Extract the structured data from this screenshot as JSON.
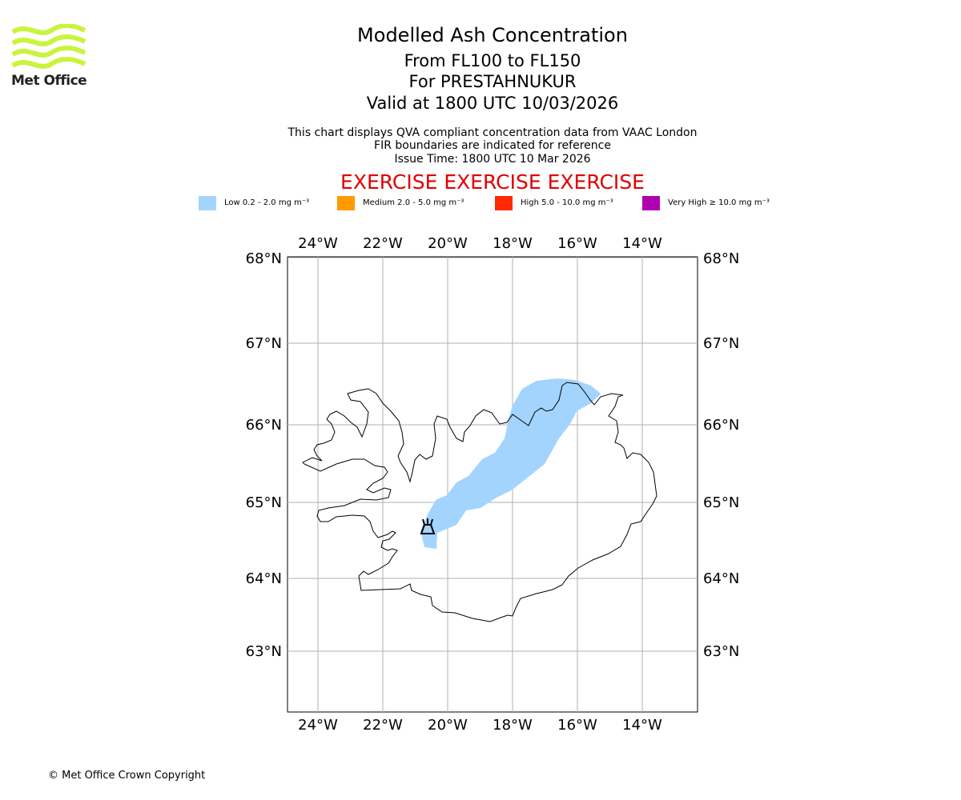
{
  "header": {
    "title": "Modelled Ash Concentration",
    "flight_levels": "From FL100 to FL150",
    "location": "For PRESTAHNUKUR",
    "valid": "Valid at 1800 UTC 10/03/2026",
    "note_line1": "This chart displays QVA compliant concentration data from VAAC London",
    "note_line2": "FIR boundaries are indicated for reference",
    "issue_time": "Issue Time: 1800 UTC 10 Mar 2026",
    "exercise_banner": "EXERCISE EXERCISE EXERCISE"
  },
  "logo": {
    "text": "Met Office",
    "accent_color": "#c8f53c"
  },
  "legend": [
    {
      "label": "Low 0.2 - 2.0 mg m⁻³",
      "color": "#a3d4fe"
    },
    {
      "label": "Medium 2.0 - 5.0 mg m⁻³",
      "color": "#ff9a00"
    },
    {
      "label": "High 5.0 - 10.0 mg m⁻³",
      "color": "#ff2a00"
    },
    {
      "label": "Very High ≥ 10.0 mg m⁻³",
      "color": "#b000b0"
    }
  ],
  "map": {
    "region": "Iceland",
    "lon_ticks": [
      "24°W",
      "22°W",
      "20°W",
      "18°W",
      "16°W",
      "14°W"
    ],
    "lat_ticks": [
      "68°N",
      "67°N",
      "66°N",
      "65°N",
      "64°N",
      "63°N"
    ],
    "volcano_marker": "volcano-icon",
    "ash_level": "Low"
  },
  "footer": {
    "copyright": "© Met Office Crown Copyright"
  }
}
